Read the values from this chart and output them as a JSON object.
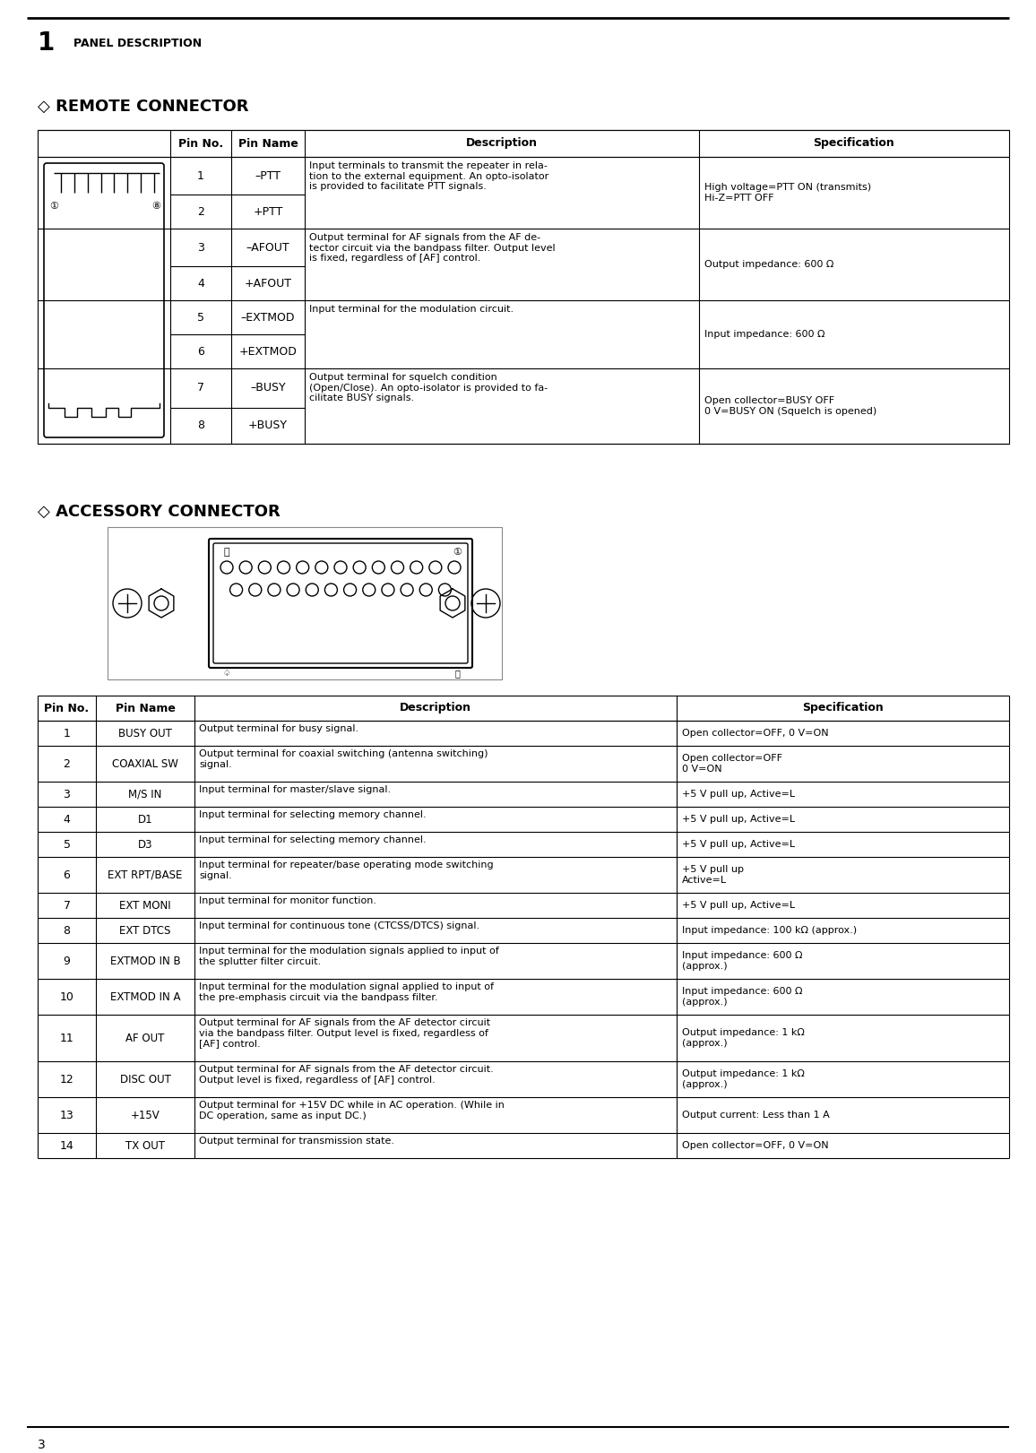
{
  "page_title_num": "1",
  "page_title_text": "PANEL DESCRIPTION",
  "page_number": "3",
  "remote_connector_title": "◇ REMOTE CONNECTOR",
  "remote_groups": [
    {
      "pins": [
        "1",
        "2"
      ],
      "names": [
        "–PTT",
        "+PTT"
      ],
      "desc": "Input terminals to transmit the repeater in rela-\ntion to the external equipment. An opto-isolator\nis provided to facilitate PTT signals.",
      "spec": "High voltage=PTT ON (transmits)\nHi-Z=PTT OFF"
    },
    {
      "pins": [
        "3",
        "4"
      ],
      "names": [
        "–AFOUT",
        "+AFOUT"
      ],
      "desc": "Output terminal for AF signals from the AF de-\ntector circuit via the bandpass filter. Output level\nis fixed, regardless of [AF] control.",
      "spec": "Output impedance: 600 Ω"
    },
    {
      "pins": [
        "5",
        "6"
      ],
      "names": [
        "–EXTMOD",
        "+EXTMOD"
      ],
      "desc": "Input terminal for the modulation circuit.",
      "spec": "Input impedance: 600 Ω"
    },
    {
      "pins": [
        "7",
        "8"
      ],
      "names": [
        "–BUSY",
        "+BUSY"
      ],
      "desc": "Output terminal for squelch condition\n(Open/Close). An opto-isolator is provided to fa-\ncilitate BUSY signals.",
      "spec": "Open collector=BUSY OFF\n0 V=BUSY ON (Squelch is opened)"
    }
  ],
  "accessory_connector_title": "◇ ACCESSORY CONNECTOR",
  "accessory_rows": [
    {
      "pin": "1",
      "name": "BUSY OUT",
      "desc": "Output terminal for busy signal.",
      "spec": "Open collector=OFF, 0 V=ON",
      "rh": 28
    },
    {
      "pin": "2",
      "name": "COAXIAL SW",
      "desc": "Output terminal for coaxial switching (antenna switching)\nsignal.",
      "spec": "Open collector=OFF\n0 V=ON",
      "rh": 40
    },
    {
      "pin": "3",
      "name": "M/S IN",
      "desc": "Input terminal for master/slave signal.",
      "spec": "+5 V pull up, Active=L",
      "rh": 28
    },
    {
      "pin": "4",
      "name": "D1",
      "desc": "Input terminal for selecting memory channel.",
      "spec": "+5 V pull up, Active=L",
      "rh": 28
    },
    {
      "pin": "5",
      "name": "D3",
      "desc": "Input terminal for selecting memory channel.",
      "spec": "+5 V pull up, Active=L",
      "rh": 28
    },
    {
      "pin": "6",
      "name": "EXT RPT/BASE",
      "desc": "Input terminal for repeater/base operating mode switching\nsignal.",
      "spec": "+5 V pull up\nActive=L",
      "rh": 40
    },
    {
      "pin": "7",
      "name": "EXT MONI",
      "desc": "Input terminal for monitor function.",
      "spec": "+5 V pull up, Active=L",
      "rh": 28
    },
    {
      "pin": "8",
      "name": "EXT DTCS",
      "desc": "Input terminal for continuous tone (CTCSS/DTCS) signal.",
      "spec": "Input impedance: 100 kΩ (approx.)",
      "rh": 28
    },
    {
      "pin": "9",
      "name": "EXTMOD IN B",
      "desc": "Input terminal for the modulation signals applied to input of\nthe splutter filter circuit.",
      "spec": "Input impedance: 600 Ω\n(approx.)",
      "rh": 40
    },
    {
      "pin": "10",
      "name": "EXTMOD IN A",
      "desc": "Input terminal for the modulation signal applied to input of\nthe pre-emphasis circuit via the bandpass filter.",
      "spec": "Input impedance: 600 Ω\n(approx.)",
      "rh": 40
    },
    {
      "pin": "11",
      "name": "AF OUT",
      "desc": "Output terminal for AF signals from the AF detector circuit\nvia the bandpass filter. Output level is fixed, regardless of\n[AF] control.",
      "spec": "Output impedance: 1 kΩ\n(approx.)",
      "rh": 52
    },
    {
      "pin": "12",
      "name": "DISC OUT",
      "desc": "Output terminal for AF signals from the AF detector circuit.\nOutput level is fixed, regardless of [AF] control.",
      "spec": "Output impedance: 1 kΩ\n(approx.)",
      "rh": 40
    },
    {
      "pin": "13",
      "name": "+15V",
      "desc": "Output terminal for +15V DC while in AC operation. (While in\nDC operation, same as input DC.)",
      "spec": "Output current: Less than 1 A",
      "rh": 40
    },
    {
      "pin": "14",
      "name": "TX OUT",
      "desc": "Output terminal for transmission state.",
      "spec": "Open collector=OFF, 0 V=ON",
      "rh": 28
    }
  ]
}
